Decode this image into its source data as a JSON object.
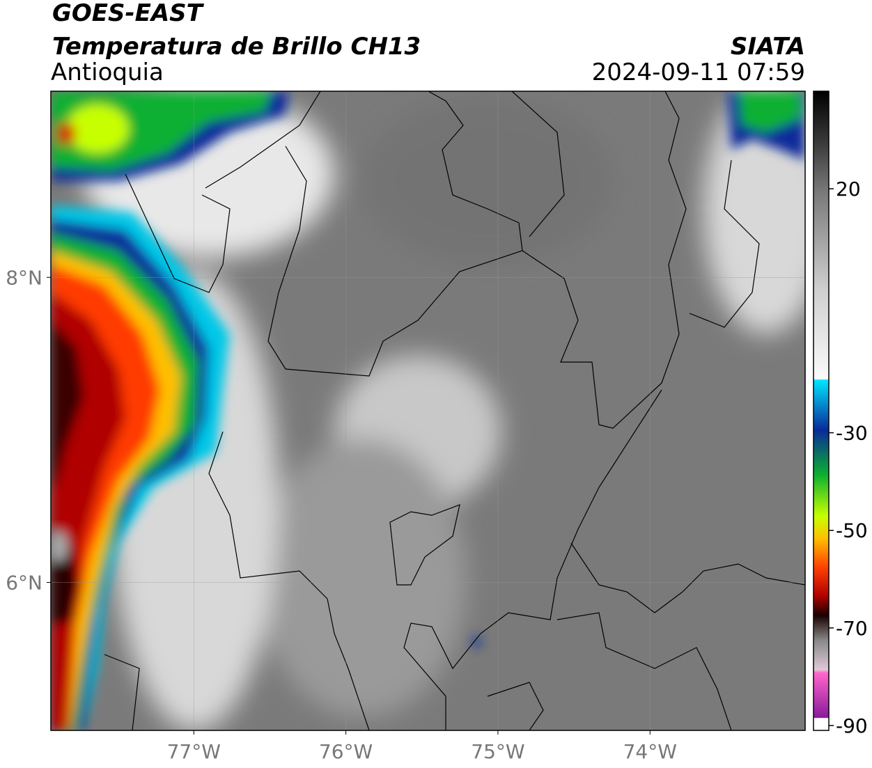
{
  "header": {
    "title": "GOES-EAST",
    "subtitle": "Temperatura de Brillo CH13",
    "region": "Antioquia",
    "source": "SIATA",
    "datetime": "2024-09-11 07:59"
  },
  "map": {
    "lonlim": [
      -77.94,
      -72.98
    ],
    "latlim": [
      5.03,
      9.22
    ],
    "xticks": [
      {
        "value": -77,
        "label": "77°W"
      },
      {
        "value": -76,
        "label": "76°W"
      },
      {
        "value": -75,
        "label": "75°W"
      },
      {
        "value": -74,
        "label": "74°W"
      }
    ],
    "yticks": [
      {
        "value": 8,
        "label": "8°N"
      },
      {
        "value": 6,
        "label": "6°N"
      }
    ],
    "grid": true
  },
  "colorbar": {
    "lim": [
      -91,
      40
    ],
    "ticks": [
      20,
      -30,
      -50,
      -70,
      -90
    ]
  }
}
